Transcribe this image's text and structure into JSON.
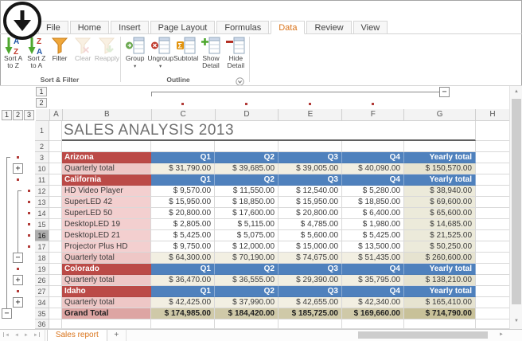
{
  "ribbon": {
    "tabs": [
      {
        "label": "File"
      },
      {
        "label": "Home"
      },
      {
        "label": "Insert"
      },
      {
        "label": "Page Layout"
      },
      {
        "label": "Formulas"
      },
      {
        "label": "Data",
        "active": true
      },
      {
        "label": "Review"
      },
      {
        "label": "View"
      }
    ],
    "groups": [
      {
        "label": "Sort & Filter",
        "buttons": [
          {
            "label_lines": [
              "Sort A",
              "to Z"
            ],
            "icon": "sort-az"
          },
          {
            "label_lines": [
              "Sort Z",
              "to A"
            ],
            "icon": "sort-za"
          },
          {
            "label_lines": [
              "Filter"
            ],
            "icon": "filter"
          },
          {
            "label_lines": [
              "Clear"
            ],
            "icon": "clear-filter",
            "disabled": true
          },
          {
            "label_lines": [
              "Reapply"
            ],
            "icon": "reapply-filter",
            "disabled": true
          }
        ]
      },
      {
        "label": "Outline",
        "has_dialog_launcher": true,
        "buttons": [
          {
            "label_lines": [
              "Group"
            ],
            "icon": "group",
            "menu": true
          },
          {
            "label_lines": [
              "Ungroup"
            ],
            "icon": "ungroup",
            "menu": true
          },
          {
            "label_lines": [
              "Subtotal"
            ],
            "icon": "subtotal"
          },
          {
            "label_lines": [
              "Show",
              "Detail"
            ],
            "icon": "show-detail"
          },
          {
            "label_lines": [
              "Hide",
              "Detail"
            ],
            "icon": "hide-detail"
          }
        ]
      }
    ]
  },
  "outline": {
    "column_levels": [
      "1",
      "2"
    ],
    "row_levels": [
      "1",
      "2",
      "3"
    ],
    "column_dots_over": [
      "C",
      "D",
      "E",
      "F"
    ],
    "expand_glyph": "+",
    "collapse_glyph": "−"
  },
  "sheet": {
    "columns": [
      "A",
      "B",
      "C",
      "D",
      "E",
      "F",
      "G",
      "H"
    ],
    "title": "SALES ANALYSIS 2013",
    "rows": [
      {
        "num": "1",
        "type": "title",
        "title": "SALES ANALYSIS 2013"
      },
      {
        "num": "2",
        "type": "blank"
      },
      {
        "num": "3",
        "type": "state",
        "b": "Arizona",
        "c": "Q1",
        "d": "Q2",
        "e": "Q3",
        "f": "Q4",
        "g": "Yearly total",
        "o2": "dot"
      },
      {
        "num": "10",
        "type": "qtotal",
        "b": "Quarterly total",
        "c": "$ 31,790.00",
        "d": "$ 39,685.00",
        "e": "$ 39,005.00",
        "f": "$ 40,090.00",
        "g": "$ 150,570.00",
        "o2": "plus"
      },
      {
        "num": "11",
        "type": "state",
        "b": "California",
        "c": "Q1",
        "d": "Q2",
        "e": "Q3",
        "f": "Q4",
        "g": "Yearly total",
        "o2": "dot"
      },
      {
        "num": "12",
        "type": "product",
        "b": "HD Video Player",
        "c": "$ 9,570.00",
        "d": "$ 11,550.00",
        "e": "$ 12,540.00",
        "f": "$ 5,280.00",
        "g": "$ 38,940.00",
        "o3": "dot"
      },
      {
        "num": "13",
        "type": "product",
        "b": "SuperLED 42",
        "c": "$ 15,950.00",
        "d": "$ 18,850.00",
        "e": "$ 15,950.00",
        "f": "$ 18,850.00",
        "g": "$ 69,600.00",
        "o3": "dot"
      },
      {
        "num": "14",
        "type": "product",
        "b": "SuperLED 50",
        "c": "$ 20,800.00",
        "d": "$ 17,600.00",
        "e": "$ 20,800.00",
        "f": "$ 6,400.00",
        "g": "$ 65,600.00",
        "o3": "dot"
      },
      {
        "num": "15",
        "type": "product",
        "b": "DesktopLED 19",
        "c": "$ 2,805.00",
        "d": "$ 5,115.00",
        "e": "$ 4,785.00",
        "f": "$ 1,980.00",
        "g": "$ 14,685.00",
        "o3": "dot"
      },
      {
        "num": "16",
        "type": "product",
        "b": "DesktopLED 21",
        "c": "$ 5,425.00",
        "d": "$ 5,075.00",
        "e": "$ 5,600.00",
        "f": "$ 5,425.00",
        "g": "$ 21,525.00",
        "o3": "dot",
        "selected": true
      },
      {
        "num": "17",
        "type": "product",
        "b": "Projector Plus HD",
        "c": "$ 9,750.00",
        "d": "$ 12,000.00",
        "e": "$ 15,000.00",
        "f": "$ 13,500.00",
        "g": "$ 50,250.00",
        "o3": "dot"
      },
      {
        "num": "18",
        "type": "qtotal",
        "b": "Quarterly total",
        "c": "$ 64,300.00",
        "d": "$ 70,190.00",
        "e": "$ 74,675.00",
        "f": "$ 51,435.00",
        "g": "$ 260,600.00",
        "o2": "minus"
      },
      {
        "num": "19",
        "type": "state",
        "b": "Colorado",
        "c": "Q1",
        "d": "Q2",
        "e": "Q3",
        "f": "Q4",
        "g": "Yearly total",
        "o2": "dot"
      },
      {
        "num": "26",
        "type": "qtotal",
        "b": "Quarterly total",
        "c": "$ 36,470.00",
        "d": "$ 36,555.00",
        "e": "$ 29,390.00",
        "f": "$ 35,795.00",
        "g": "$ 138,210.00",
        "o2": "plus"
      },
      {
        "num": "27",
        "type": "state",
        "b": "Idaho",
        "c": "Q1",
        "d": "Q2",
        "e": "Q3",
        "f": "Q4",
        "g": "Yearly total",
        "o2": "dot"
      },
      {
        "num": "34",
        "type": "qtotal",
        "b": "Quarterly total",
        "c": "$ 42,425.00",
        "d": "$ 37,990.00",
        "e": "$ 42,655.00",
        "f": "$ 42,340.00",
        "g": "$ 165,410.00",
        "o2": "plus"
      },
      {
        "num": "35",
        "type": "grand",
        "b": "Grand Total",
        "c": "$ 174,985.00",
        "d": "$ 184,420.00",
        "e": "$ 185,725.00",
        "f": "$ 169,660.00",
        "g": "$ 714,790.00",
        "o1": "minus"
      },
      {
        "num": "36",
        "type": "blank"
      }
    ],
    "selected_row_header": "16"
  },
  "tabbar": {
    "sheet_tab": "Sales report",
    "add_label": "+",
    "nav": [
      {
        "name": "first",
        "glyph": "◄"
      },
      {
        "name": "prev",
        "glyph": "◄"
      },
      {
        "name": "next",
        "glyph": "►"
      },
      {
        "name": "last",
        "glyph": "►"
      }
    ]
  },
  "colors": {
    "state_header_bg": "#bb4a47",
    "quarter_header_bg": "#4f81bd",
    "accent_orange": "#d9731a",
    "outline_marker": "#b23b38",
    "grand_total_bg": "#cfc9a8"
  }
}
